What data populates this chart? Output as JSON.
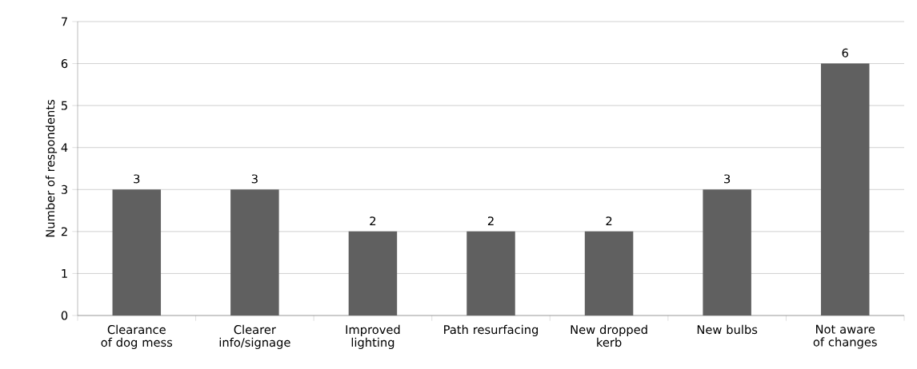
{
  "chart_data": {
    "type": "bar",
    "ylabel": "Number of respondents",
    "categories": [
      "Clearance of dog mess",
      "Clearer info/signage",
      "Improved lighting",
      "Path resurfacing",
      "New dropped kerb",
      "New bulbs",
      "Not aware of changes"
    ],
    "values": [
      3,
      3,
      2,
      2,
      2,
      3,
      6
    ],
    "color": "#606060",
    "ylim": [
      0,
      7
    ],
    "yticks": [
      0,
      1,
      2,
      3,
      4,
      5,
      6,
      7
    ],
    "grid": "y",
    "data_labels": true
  }
}
